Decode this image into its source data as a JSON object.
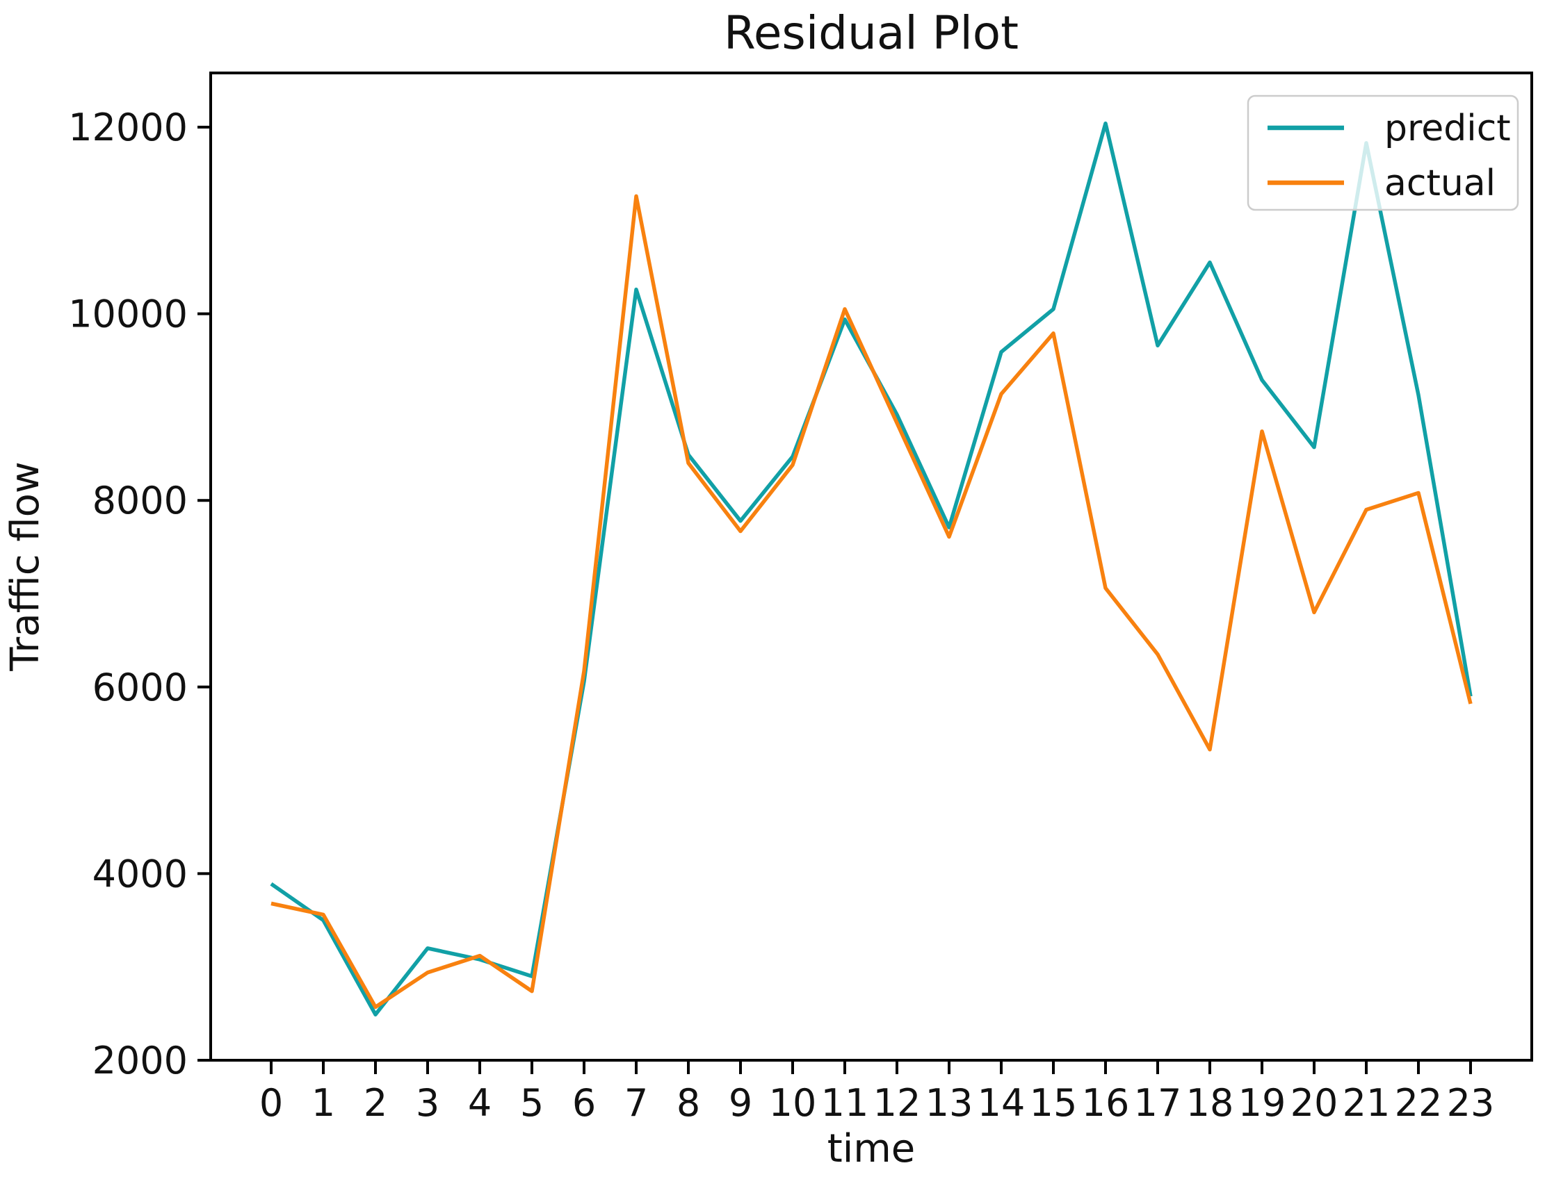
{
  "figure_title": "Residual Plot",
  "chart_data": {
    "type": "line",
    "title": "Residual Plot",
    "xlabel": "time",
    "ylabel": "Traffic flow",
    "x": [
      0,
      1,
      2,
      3,
      4,
      5,
      6,
      7,
      8,
      9,
      10,
      11,
      12,
      13,
      14,
      15,
      16,
      17,
      18,
      19,
      20,
      21,
      22,
      23
    ],
    "x_tick_labels": [
      "0",
      "1",
      "2",
      "3",
      "4",
      "5",
      "6",
      "7",
      "8",
      "9",
      "10",
      "11",
      "12",
      "13",
      "14",
      "15",
      "16",
      "17",
      "18",
      "19",
      "20",
      "21",
      "22",
      "23"
    ],
    "y_ticks": [
      2000,
      4000,
      6000,
      8000,
      10000,
      12000
    ],
    "y_tick_labels": [
      "2000",
      "4000",
      "6000",
      "8000",
      "10000",
      "12000"
    ],
    "xlim": [
      -1.15,
      24.15
    ],
    "ylim": [
      2000,
      12580
    ],
    "grid": false,
    "legend_position": "upper right",
    "legend": {
      "entries": [
        {
          "label": "predict",
          "color": "#11a0a6"
        },
        {
          "label": "actual",
          "color": "#f8810f"
        }
      ]
    },
    "series": [
      {
        "name": "predict",
        "color": "#11a0a6",
        "values": [
          3890,
          3500,
          2490,
          3200,
          3080,
          2900,
          6060,
          10260,
          8490,
          7780,
          8470,
          9940,
          8920,
          7710,
          9590,
          10050,
          12040,
          9660,
          10550,
          9290,
          8570,
          11830,
          9130,
          5900
        ]
      },
      {
        "name": "actual",
        "color": "#f8810f",
        "values": [
          3680,
          3560,
          2570,
          2940,
          3120,
          2740,
          6170,
          11260,
          8400,
          7670,
          8380,
          10050,
          8830,
          7610,
          9140,
          9790,
          7060,
          6350,
          5330,
          8740,
          6800,
          7900,
          8080,
          5820
        ]
      }
    ]
  }
}
